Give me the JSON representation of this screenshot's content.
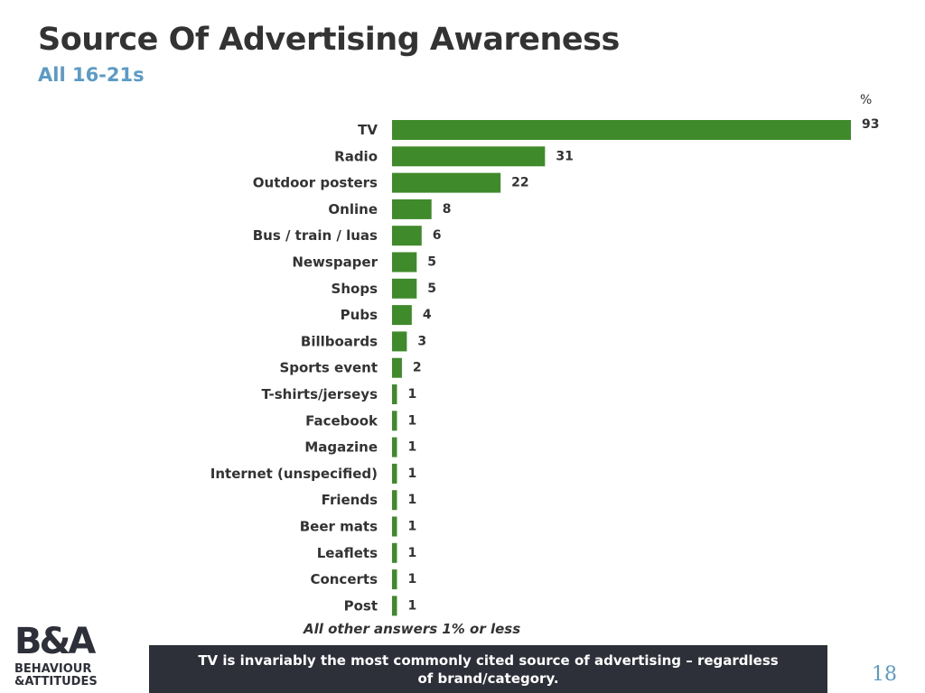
{
  "header": {
    "title": "Source Of Advertising Awareness",
    "subtitle": "All 16-21s"
  },
  "chart_data": {
    "type": "bar",
    "orientation": "horizontal",
    "unit_label": "%",
    "bar_color": "#3f8a2a",
    "categories": [
      "TV",
      "Radio",
      "Outdoor posters",
      "Online",
      "Bus / train / luas",
      "Newspaper",
      "Shops",
      "Pubs",
      "Billboards",
      "Sports event",
      "T-shirts/jerseys",
      "Facebook",
      "Magazine",
      "Internet (unspecified)",
      "Friends",
      "Beer mats",
      "Leaflets",
      "Concerts",
      "Post"
    ],
    "values": [
      93,
      31,
      22,
      8,
      6,
      5,
      5,
      4,
      3,
      2,
      1,
      1,
      1,
      1,
      1,
      1,
      1,
      1,
      1
    ],
    "xlim": [
      0,
      93
    ]
  },
  "footnote": "All other answers 1% or less",
  "banner": {
    "text": "TV is invariably the most commonly cited source of advertising – regardless of brand/category."
  },
  "page_number": "18",
  "logo": {
    "line1": "B&A",
    "line2": "BEHAVIOUR",
    "line3": "&ATTITUDES"
  }
}
